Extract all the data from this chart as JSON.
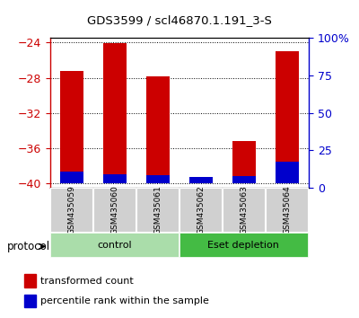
{
  "title": "GDS3599 / scl46870.1.191_3-S",
  "samples": [
    "GSM435059",
    "GSM435060",
    "GSM435061",
    "GSM435062",
    "GSM435063",
    "GSM435064"
  ],
  "red_bar_tops": [
    -27.2,
    -24.1,
    -27.8,
    -39.7,
    -35.2,
    -25.0
  ],
  "blue_bar_tops": [
    -38.7,
    -39.0,
    -39.1,
    -39.3,
    -39.2,
    -37.6
  ],
  "baseline": -40,
  "ylim_left": [
    -40.5,
    -23.5
  ],
  "yticks_left": [
    -40,
    -36,
    -32,
    -28,
    -24
  ],
  "ytick_right_labels": [
    "0",
    "25",
    "50",
    "75",
    "100%"
  ],
  "yticks_right": [
    0,
    25,
    50,
    75,
    100
  ],
  "bar_width": 0.55,
  "red_color": "#cc0000",
  "blue_color": "#0000cc",
  "bg_color": "#ffffff",
  "left_tick_color": "#cc0000",
  "right_tick_color": "#0000cc",
  "group_boundaries": [
    [
      0,
      3,
      "control",
      "#aaddaa"
    ],
    [
      3,
      6,
      "Eset depletion",
      "#44bb44"
    ]
  ],
  "protocol_label": "protocol",
  "legend_items": [
    "transformed count",
    "percentile rank within the sample"
  ]
}
